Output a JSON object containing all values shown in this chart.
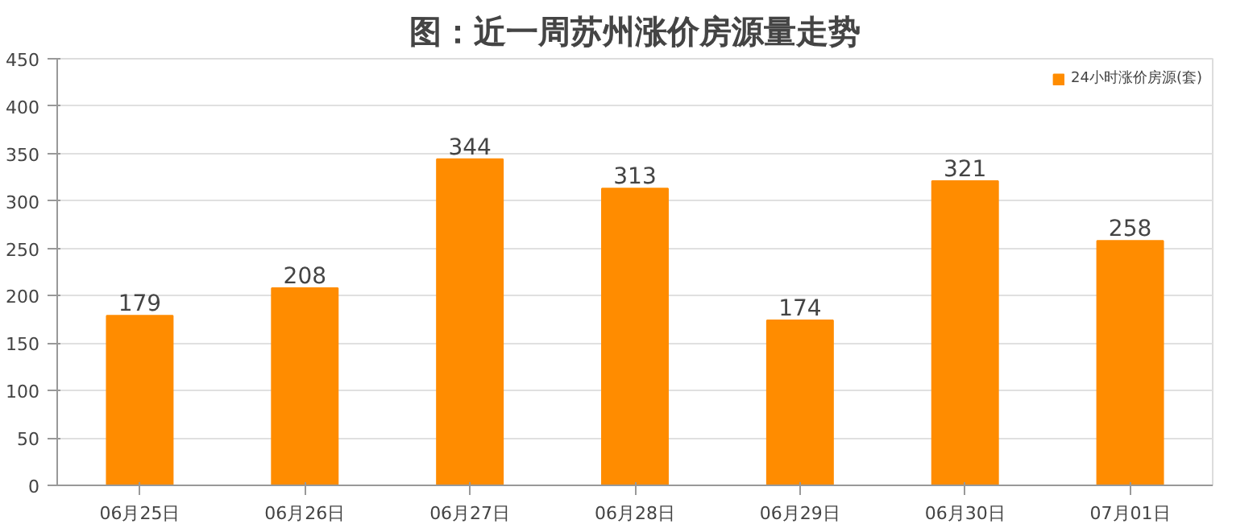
{
  "chart_data": {
    "type": "bar",
    "title": "图：近一周苏州涨价房源量走势",
    "categories": [
      "06月25日",
      "06月26日",
      "06月27日",
      "06月28日",
      "06月29日",
      "06月30日",
      "07月01日"
    ],
    "series": [
      {
        "name": "24小时涨价房源(套)",
        "color": "#ff8c00",
        "values": [
          179,
          208,
          344,
          313,
          174,
          321,
          258
        ]
      }
    ],
    "ylim": [
      0,
      450
    ],
    "yticks": [
      0,
      50,
      100,
      150,
      200,
      250,
      300,
      350,
      400,
      450
    ],
    "grid": "y",
    "legend": "top right",
    "data_labels": true
  }
}
